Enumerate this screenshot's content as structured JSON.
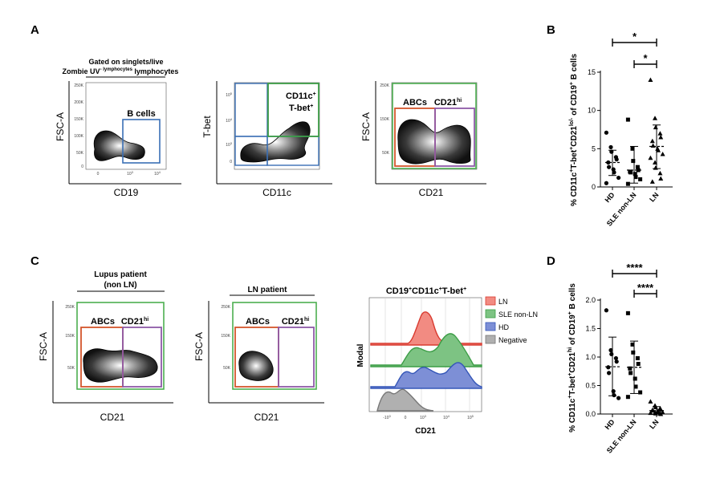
{
  "panels": {
    "A": {
      "label": "A",
      "gating_note": [
        "Gated on singlets/live",
        "Zombie UV",
        "- lymphocytes"
      ],
      "plots": [
        {
          "xlabel": "CD19",
          "ylabel": "FSC-A",
          "gates": [
            "B cells"
          ]
        },
        {
          "xlabel": "CD11c",
          "ylabel": "T-bet",
          "gates": [
            "CD11c",
            "+",
            "T-bet",
            "+"
          ]
        },
        {
          "xlabel": "CD21",
          "ylabel": "FSC-A",
          "gates": [
            "ABCs",
            "CD21",
            "hi"
          ]
        }
      ],
      "ticks": {
        "fsc": [
          "250K",
          "200K",
          "150K",
          "100K",
          "50K",
          "0"
        ],
        "tbet": [
          "10",
          "5",
          "10",
          "4",
          "10",
          "3",
          "0"
        ],
        "cd19": [
          "0",
          "10",
          "3",
          "10",
          "4",
          "10",
          "5"
        ]
      }
    },
    "B": {
      "label": "B",
      "ylabel": [
        "% CD11c",
        "+",
        "T-bet",
        "+",
        "CD21",
        "lo/-",
        " of CD19",
        "+",
        " B cells"
      ],
      "significance": [
        "*",
        "*"
      ]
    },
    "C": {
      "label": "C",
      "plots": [
        {
          "title": [
            "Lupus patient",
            "(non LN)"
          ],
          "xlabel": "CD21",
          "ylabel": "FSC-A",
          "gates": [
            "ABCs",
            "CD21",
            "hi"
          ]
        },
        {
          "title": [
            "LN patient"
          ],
          "xlabel": "CD21",
          "ylabel": "FSC-A",
          "gates": [
            "ABCs",
            "CD21",
            "hi"
          ]
        }
      ],
      "histogram": {
        "title": [
          "CD19",
          "+",
          "CD11c",
          "+",
          "T-bet",
          "+"
        ],
        "xlabel": "CD21",
        "ylabel": "Modal",
        "legend": [
          {
            "label": "LN",
            "color": "#f28b82"
          },
          {
            "label": "SLE non-LN",
            "color": "#7dc383"
          },
          {
            "label": "HD",
            "color": "#7d8fd6"
          },
          {
            "label": "Negative",
            "color": "#b0b0b0"
          }
        ],
        "ticks": [
          "-10",
          "3",
          "0",
          "10",
          "3",
          "10",
          "4",
          "10",
          "5"
        ]
      }
    },
    "D": {
      "label": "D",
      "ylabel": [
        "% CD11c",
        "+",
        "T-bet",
        "+",
        "CD21",
        "hi",
        " of CD19",
        "+",
        " B cells"
      ],
      "significance": [
        "****",
        "****"
      ]
    }
  },
  "chart_data": [
    {
      "type": "scatter",
      "panel": "B",
      "categories": [
        "HD",
        "SLE non-LN",
        "LN"
      ],
      "ylabel": "% CD11c+T-bet+CD21lo/- of CD19+ B cells",
      "ylim": [
        0,
        15
      ],
      "yticks": [
        "0",
        "5",
        "10",
        "15"
      ],
      "markers": [
        "circle",
        "square",
        "triangle"
      ],
      "series": [
        {
          "values": [
            7.1,
            5.2,
            4.6,
            3.9,
            3.6,
            3.2,
            2.6,
            2.3,
            1.9,
            1.2,
            0.5
          ],
          "mean": 3.2,
          "sd_low": 1.5,
          "sd_high": 4.8
        },
        {
          "values": [
            8.8,
            5.0,
            3.4,
            2.6,
            2.2,
            2.0,
            1.9,
            1.7,
            1.3,
            1.0,
            0.4
          ],
          "mean": 2.2,
          "sd_low": 0.5,
          "sd_high": 5.3
        },
        {
          "values": [
            14.0,
            9.0,
            7.8,
            7.0,
            6.5,
            6.0,
            5.4,
            5.0,
            4.8,
            4.3,
            3.8,
            3.2,
            2.5,
            1.8,
            1.1,
            0.7
          ],
          "mean": 5.3,
          "sd_low": 2.4,
          "sd_high": 8.1
        }
      ],
      "significance": [
        {
          "from": "HD",
          "to": "LN",
          "label": "*"
        },
        {
          "from": "SLE non-LN",
          "to": "LN",
          "label": "*"
        }
      ]
    },
    {
      "type": "scatter",
      "panel": "D",
      "categories": [
        "HD",
        "SLE non-LN",
        "LN"
      ],
      "ylabel": "% CD11c+T-bet+CD21hi of CD19+ B cells",
      "ylim": [
        0,
        2.0
      ],
      "yticks": [
        "0.0",
        "0.5",
        "1.0",
        "1.5",
        "2.0"
      ],
      "markers": [
        "circle",
        "square",
        "triangle"
      ],
      "series": [
        {
          "values": [
            1.82,
            1.12,
            1.05,
            0.98,
            0.92,
            0.82,
            0.72,
            0.4,
            0.33,
            0.28
          ],
          "mean": 0.83,
          "sd_low": 0.32,
          "sd_high": 1.35
        },
        {
          "values": [
            1.77,
            1.22,
            1.08,
            0.98,
            0.88,
            0.8,
            0.72,
            0.62,
            0.48,
            0.38,
            0.3
          ],
          "mean": 0.82,
          "sd_low": 0.36,
          "sd_high": 1.28
        },
        {
          "values": [
            0.22,
            0.15,
            0.12,
            0.1,
            0.08,
            0.07,
            0.06,
            0.05,
            0.04,
            0.03,
            0.02,
            0.02,
            0.01,
            0.01,
            0.0
          ],
          "mean": 0.06,
          "sd_low": 0.0,
          "sd_high": 0.13
        }
      ],
      "significance": [
        {
          "from": "HD",
          "to": "LN",
          "label": "****"
        },
        {
          "from": "SLE non-LN",
          "to": "LN",
          "label": "****"
        }
      ]
    }
  ]
}
